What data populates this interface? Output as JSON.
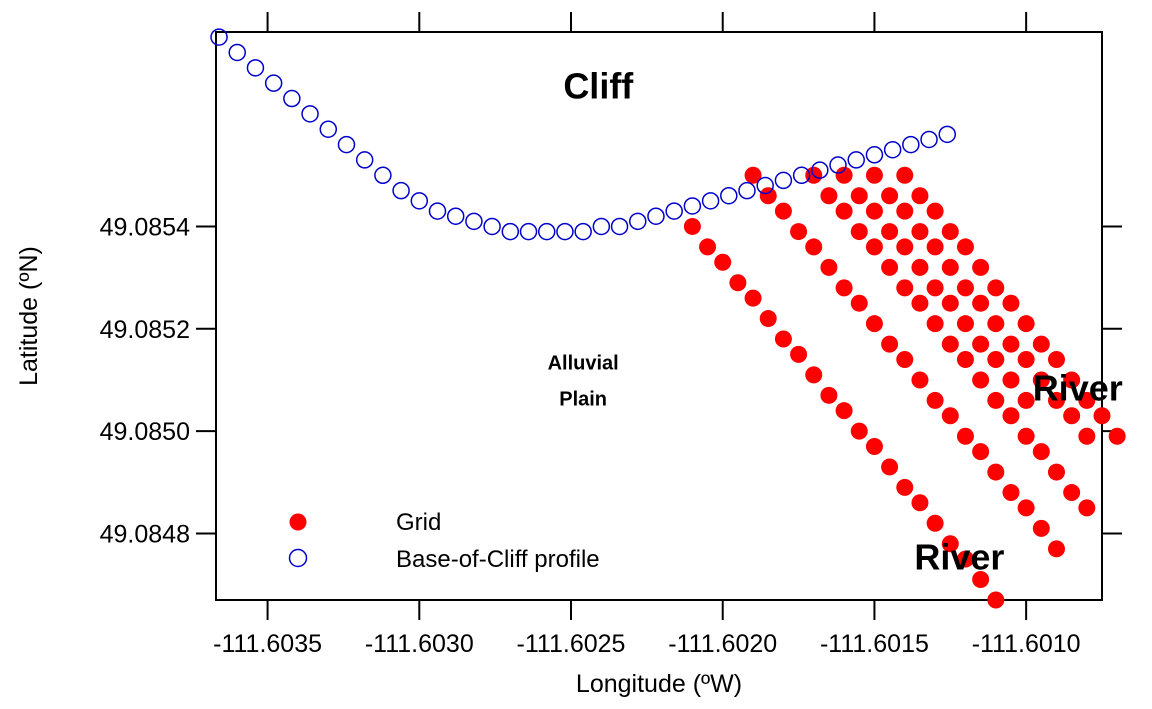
{
  "chart_data": {
    "type": "scatter",
    "xlabel": "Longitude (ºW)",
    "ylabel": "Latitude (ºN)",
    "xlim": [
      -111.60367,
      -111.60075
    ],
    "ylim": [
      49.08467,
      49.08578
    ],
    "xticks": [
      -111.6035,
      -111.603,
      -111.6025,
      -111.602,
      -111.6015,
      -111.601
    ],
    "xtick_labels": [
      "-111.6035",
      "-111.6030",
      "-111.6025",
      "-111.6020",
      "-111.6015",
      "-111.6010"
    ],
    "yticks": [
      49.0848,
      49.085,
      49.0852,
      49.0854
    ],
    "ytick_labels": [
      "49.0848",
      "49.0850",
      "49.0852",
      "49.0854"
    ],
    "legend_position": "bottom-left",
    "annotations": [
      {
        "text": "Cliff",
        "x": -111.60241,
        "y": 49.08565,
        "style": "big"
      },
      {
        "text": "Alluvial",
        "x": -111.60246,
        "y": 49.08512,
        "style": "small"
      },
      {
        "text": "Plain",
        "x": -111.60246,
        "y": 49.08505,
        "style": "small"
      },
      {
        "text": "River",
        "x": -111.60083,
        "y": 49.08506,
        "style": "big"
      },
      {
        "text": "River",
        "x": -111.60122,
        "y": 49.08473,
        "style": "big"
      }
    ],
    "series": [
      {
        "name": "Grid",
        "marker": "filled-circle",
        "color": "#ff0000",
        "points": [
          [
            -111.6021,
            49.0854
          ],
          [
            -111.60205,
            49.08536
          ],
          [
            -111.602,
            49.08533
          ],
          [
            -111.60195,
            49.08529
          ],
          [
            -111.6019,
            49.08526
          ],
          [
            -111.60185,
            49.08522
          ],
          [
            -111.6018,
            49.08518
          ],
          [
            -111.60175,
            49.08515
          ],
          [
            -111.6017,
            49.08511
          ],
          [
            -111.60165,
            49.08507
          ],
          [
            -111.6016,
            49.08504
          ],
          [
            -111.60155,
            49.085
          ],
          [
            -111.6015,
            49.08497
          ],
          [
            -111.60145,
            49.08493
          ],
          [
            -111.6014,
            49.08489
          ],
          [
            -111.60135,
            49.08486
          ],
          [
            -111.6013,
            49.08482
          ],
          [
            -111.60125,
            49.08478
          ],
          [
            -111.6012,
            49.08475
          ],
          [
            -111.60115,
            49.08471
          ],
          [
            -111.6011,
            49.08467
          ],
          [
            -111.6019,
            49.0855
          ],
          [
            -111.60185,
            49.08546
          ],
          [
            -111.6018,
            49.08543
          ],
          [
            -111.60175,
            49.08539
          ],
          [
            -111.6017,
            49.08536
          ],
          [
            -111.60165,
            49.08532
          ],
          [
            -111.6016,
            49.08528
          ],
          [
            -111.60155,
            49.08525
          ],
          [
            -111.6015,
            49.08521
          ],
          [
            -111.60145,
            49.08517
          ],
          [
            -111.6014,
            49.08514
          ],
          [
            -111.60135,
            49.0851
          ],
          [
            -111.6013,
            49.08506
          ],
          [
            -111.60125,
            49.08503
          ],
          [
            -111.6012,
            49.08499
          ],
          [
            -111.60115,
            49.08496
          ],
          [
            -111.6011,
            49.08492
          ],
          [
            -111.60105,
            49.08488
          ],
          [
            -111.601,
            49.08485
          ],
          [
            -111.60095,
            49.08481
          ],
          [
            -111.6009,
            49.08477
          ],
          [
            -111.6017,
            49.0855
          ],
          [
            -111.60165,
            49.08546
          ],
          [
            -111.6016,
            49.08543
          ],
          [
            -111.60155,
            49.08539
          ],
          [
            -111.6015,
            49.08536
          ],
          [
            -111.60145,
            49.08532
          ],
          [
            -111.6014,
            49.08528
          ],
          [
            -111.60135,
            49.08525
          ],
          [
            -111.6013,
            49.08521
          ],
          [
            -111.60125,
            49.08517
          ],
          [
            -111.6012,
            49.08514
          ],
          [
            -111.60115,
            49.0851
          ],
          [
            -111.6011,
            49.08506
          ],
          [
            -111.60105,
            49.08503
          ],
          [
            -111.601,
            49.08499
          ],
          [
            -111.60095,
            49.08496
          ],
          [
            -111.6009,
            49.08492
          ],
          [
            -111.60085,
            49.08488
          ],
          [
            -111.6008,
            49.08485
          ],
          [
            -111.6016,
            49.0855
          ],
          [
            -111.60155,
            49.08546
          ],
          [
            -111.6015,
            49.08543
          ],
          [
            -111.60145,
            49.08539
          ],
          [
            -111.6014,
            49.08536
          ],
          [
            -111.60135,
            49.08532
          ],
          [
            -111.6013,
            49.08528
          ],
          [
            -111.60125,
            49.08525
          ],
          [
            -111.6012,
            49.08521
          ],
          [
            -111.60115,
            49.08517
          ],
          [
            -111.6011,
            49.08514
          ],
          [
            -111.60105,
            49.0851
          ],
          [
            -111.601,
            49.08506
          ],
          [
            -111.6015,
            49.0855
          ],
          [
            -111.60145,
            49.08546
          ],
          [
            -111.6014,
            49.08543
          ],
          [
            -111.60135,
            49.08539
          ],
          [
            -111.6013,
            49.08536
          ],
          [
            -111.60125,
            49.08532
          ],
          [
            -111.6012,
            49.08528
          ],
          [
            -111.60115,
            49.08525
          ],
          [
            -111.6011,
            49.08521
          ],
          [
            -111.60105,
            49.08517
          ],
          [
            -111.601,
            49.08514
          ],
          [
            -111.60095,
            49.0851
          ],
          [
            -111.6009,
            49.08506
          ],
          [
            -111.60085,
            49.08503
          ],
          [
            -111.6008,
            49.08499
          ],
          [
            -111.6014,
            49.0855
          ],
          [
            -111.60135,
            49.08546
          ],
          [
            -111.6013,
            49.08543
          ],
          [
            -111.60125,
            49.08539
          ],
          [
            -111.6012,
            49.08536
          ],
          [
            -111.60115,
            49.08532
          ],
          [
            -111.6011,
            49.08528
          ],
          [
            -111.60105,
            49.08525
          ],
          [
            -111.601,
            49.08521
          ],
          [
            -111.60095,
            49.08517
          ],
          [
            -111.6009,
            49.08514
          ],
          [
            -111.60085,
            49.0851
          ],
          [
            -111.6008,
            49.08506
          ],
          [
            -111.60075,
            49.08503
          ],
          [
            -111.6007,
            49.08499
          ]
        ]
      },
      {
        "name": "Base-of-Cliff profile",
        "marker": "open-circle",
        "color": "#0000cc",
        "points": [
          [
            -111.60366,
            49.08577
          ],
          [
            -111.6036,
            49.08574
          ],
          [
            -111.60354,
            49.08571
          ],
          [
            -111.60348,
            49.08568
          ],
          [
            -111.60342,
            49.08565
          ],
          [
            -111.60336,
            49.08562
          ],
          [
            -111.6033,
            49.08559
          ],
          [
            -111.60324,
            49.08556
          ],
          [
            -111.60318,
            49.08553
          ],
          [
            -111.60312,
            49.0855
          ],
          [
            -111.60306,
            49.08547
          ],
          [
            -111.603,
            49.08545
          ],
          [
            -111.60294,
            49.08543
          ],
          [
            -111.60288,
            49.08542
          ],
          [
            -111.60282,
            49.08541
          ],
          [
            -111.60276,
            49.0854
          ],
          [
            -111.6027,
            49.08539
          ],
          [
            -111.60264,
            49.08539
          ],
          [
            -111.60258,
            49.08539
          ],
          [
            -111.60252,
            49.08539
          ],
          [
            -111.60246,
            49.08539
          ],
          [
            -111.6024,
            49.0854
          ],
          [
            -111.60234,
            49.0854
          ],
          [
            -111.60228,
            49.08541
          ],
          [
            -111.60222,
            49.08542
          ],
          [
            -111.60216,
            49.08543
          ],
          [
            -111.6021,
            49.08544
          ],
          [
            -111.60204,
            49.08545
          ],
          [
            -111.60198,
            49.08546
          ],
          [
            -111.60192,
            49.08547
          ],
          [
            -111.60186,
            49.08548
          ],
          [
            -111.6018,
            49.08549
          ],
          [
            -111.60174,
            49.0855
          ],
          [
            -111.60168,
            49.08551
          ],
          [
            -111.60162,
            49.08552
          ],
          [
            -111.60156,
            49.08553
          ],
          [
            -111.6015,
            49.08554
          ],
          [
            -111.60144,
            49.08555
          ],
          [
            -111.60138,
            49.08556
          ],
          [
            -111.60132,
            49.08557
          ],
          [
            -111.60126,
            49.08558
          ]
        ]
      }
    ]
  }
}
